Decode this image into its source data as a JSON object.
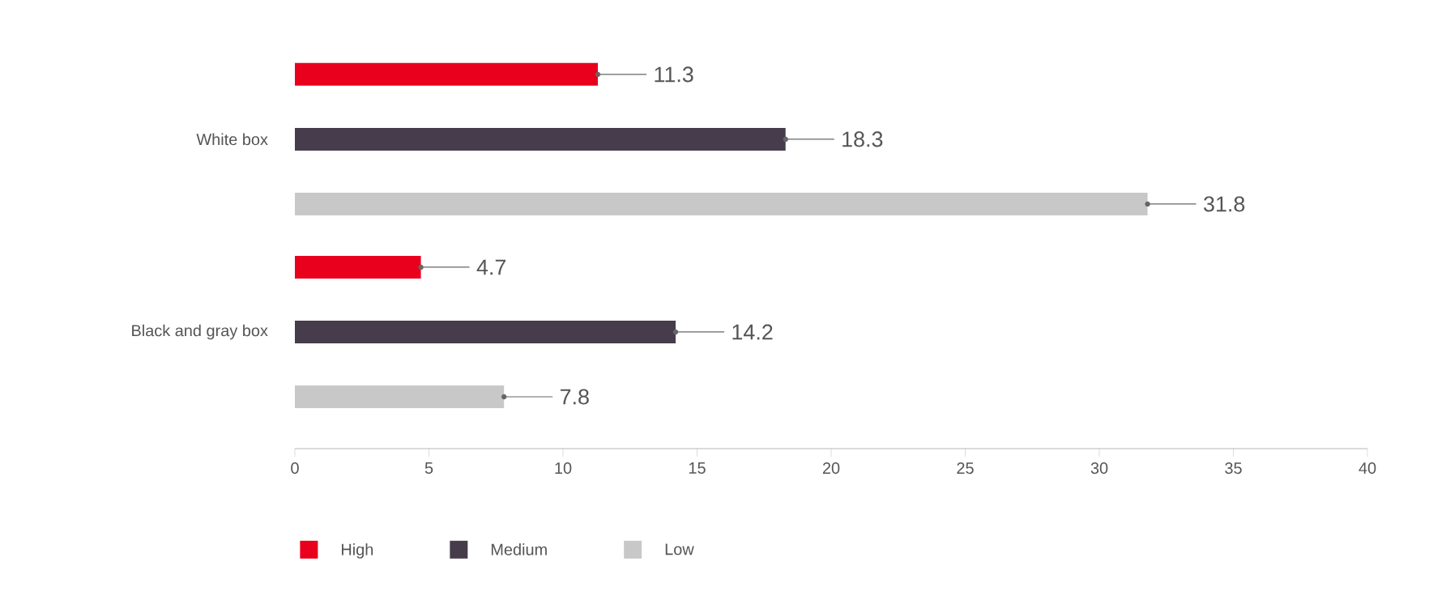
{
  "chart_data": {
    "type": "bar",
    "orientation": "horizontal",
    "categories": [
      "White box",
      "Black and gray box"
    ],
    "series": [
      {
        "name": "High",
        "color": "#e8001c",
        "values": [
          11.3,
          4.7
        ]
      },
      {
        "name": "Medium",
        "color": "#463c4b",
        "values": [
          18.3,
          14.2
        ]
      },
      {
        "name": "Low",
        "color": "#c8c8c8",
        "values": [
          31.8,
          7.8
        ]
      }
    ],
    "xlim": [
      0,
      40
    ],
    "xticks": [
      0,
      5,
      10,
      15,
      20,
      25,
      30,
      35,
      40
    ],
    "data_labels": true,
    "legend": "bottom",
    "grid": false
  }
}
